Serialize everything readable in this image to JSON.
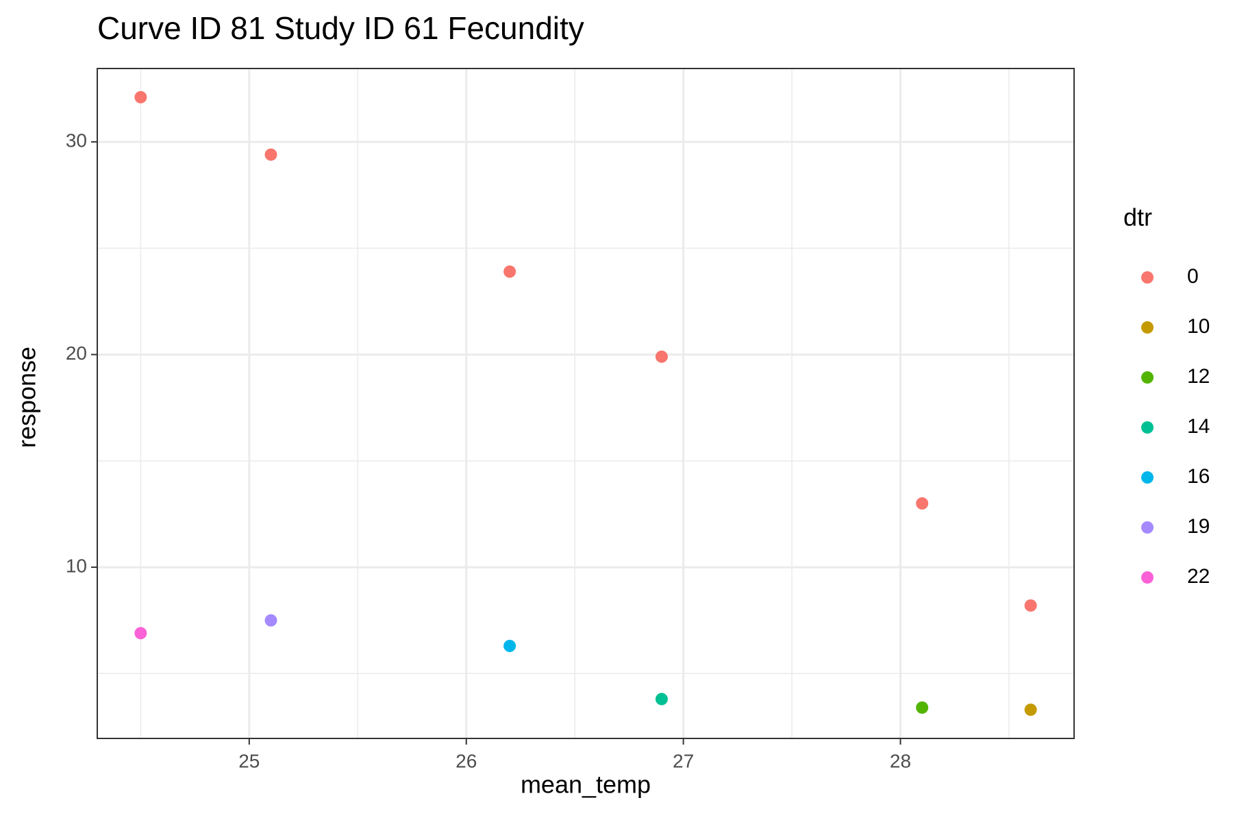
{
  "chart_data": {
    "type": "scatter",
    "title": "Curve ID 81 Study ID 61 Fecundity",
    "x_label": "mean_temp",
    "y_label": "response",
    "legend_title": "dtr",
    "xlim": [
      24.3,
      28.8
    ],
    "ylim": [
      1.95,
      33.45
    ],
    "xticks": [
      25,
      26,
      27,
      28
    ],
    "yticks": [
      10,
      20,
      30
    ],
    "x_minor_grid": [
      24.5,
      25.5,
      26.5,
      27.5,
      28.5
    ],
    "y_minor_grid": [
      5,
      15,
      25
    ],
    "grid": true,
    "legend": "right",
    "series": [
      {
        "name": "0",
        "color": "#F8766D",
        "x": [
          24.5,
          25.1,
          26.2,
          26.9,
          28.1,
          28.6
        ],
        "values": [
          32.1,
          29.4,
          23.9,
          19.9,
          13.0,
          8.2
        ]
      },
      {
        "name": "10",
        "color": "#C49A00",
        "x": [
          28.6
        ],
        "values": [
          3.3
        ]
      },
      {
        "name": "12",
        "color": "#53B400",
        "x": [
          28.1
        ],
        "values": [
          3.4
        ]
      },
      {
        "name": "14",
        "color": "#00C094",
        "x": [
          26.9
        ],
        "values": [
          3.8
        ]
      },
      {
        "name": "16",
        "color": "#00B6EB",
        "x": [
          26.2
        ],
        "values": [
          6.3
        ]
      },
      {
        "name": "19",
        "color": "#A58AFF",
        "x": [
          25.1
        ],
        "values": [
          7.5
        ]
      },
      {
        "name": "22",
        "color": "#FB61D7",
        "x": [
          24.5
        ],
        "values": [
          6.9
        ]
      }
    ]
  }
}
